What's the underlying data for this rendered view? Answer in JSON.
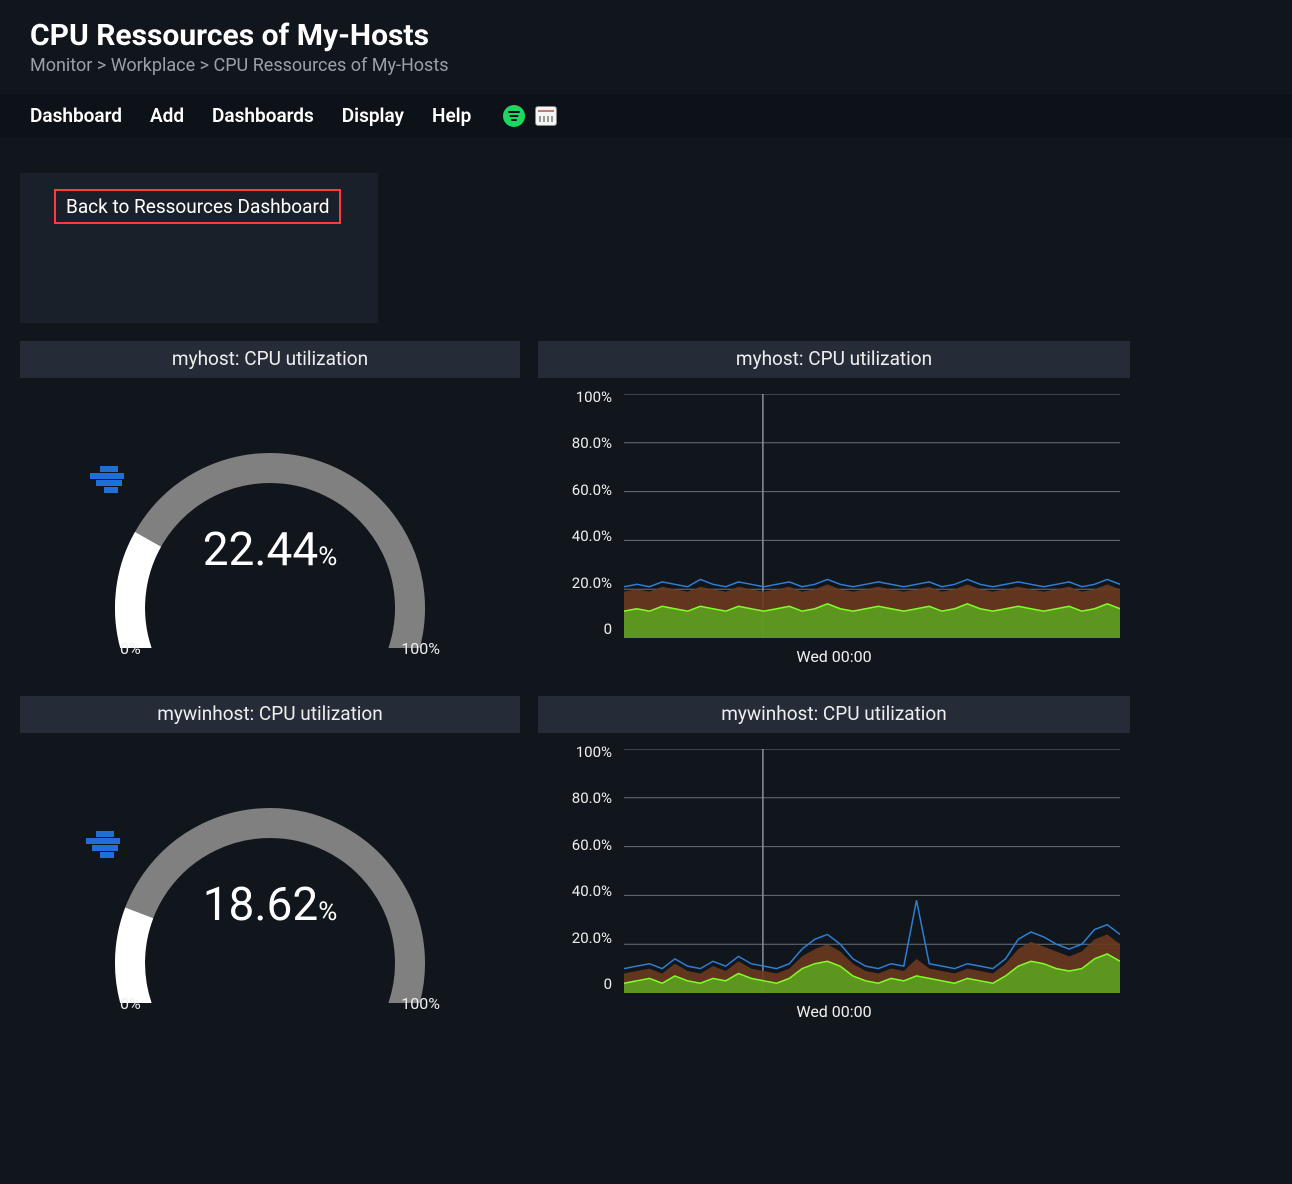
{
  "header": {
    "title": "CPU Ressources of My-Hosts",
    "breadcrumb": "Monitor > Workplace > CPU Ressources of My-Hosts"
  },
  "menu": {
    "items": [
      "Dashboard",
      "Add",
      "Dashboards",
      "Display",
      "Help"
    ]
  },
  "back_panel": {
    "label": "Back to Ressources Dashboard",
    "border_color": "#ff3b3b"
  },
  "colors": {
    "page_bg": "#11161d",
    "panel_header_bg": "#252c37",
    "gauge_track": "#808080",
    "gauge_fill": "#ffffff",
    "marker": "#1e6fd9",
    "series_blue": "#2e7fd4",
    "series_brown": "#6b3a1f",
    "series_green": "#5bbf1f",
    "grid": "#6a7078"
  },
  "gauges": [
    {
      "title": "myhost: CPU utilization",
      "value_text": "22.44",
      "percent_suffix": "%",
      "value": 22.44,
      "min_label": "0%",
      "max_label": "100%"
    },
    {
      "title": "mywinhost: CPU utilization",
      "value_text": "18.62",
      "percent_suffix": "%",
      "value": 18.62,
      "min_label": "0%",
      "max_label": "100%"
    }
  ],
  "charts": [
    {
      "title": "myhost: CPU utilization",
      "y_ticks": [
        "100%",
        "80.0%",
        "60.0%",
        "40.0%",
        "20.0%",
        "0"
      ],
      "ylim": [
        0,
        100
      ],
      "x_label": "Wed 00:00",
      "vline_x": 0.28,
      "series": {
        "blue": [
          21,
          22,
          21,
          23,
          22,
          21,
          24,
          22,
          21,
          23,
          22,
          21,
          22,
          23,
          21,
          22,
          24,
          22,
          21,
          22,
          23,
          22,
          21,
          22,
          23,
          21,
          22,
          24,
          22,
          21,
          22,
          23,
          22,
          21,
          22,
          23,
          21,
          22,
          24,
          22
        ],
        "brown": [
          19,
          20,
          19,
          21,
          20,
          19,
          21,
          20,
          19,
          21,
          20,
          19,
          20,
          21,
          19,
          20,
          22,
          20,
          19,
          20,
          21,
          20,
          19,
          20,
          21,
          19,
          20,
          22,
          20,
          19,
          20,
          21,
          20,
          19,
          20,
          21,
          19,
          20,
          22,
          20
        ],
        "green": [
          11,
          12,
          11,
          13,
          12,
          11,
          13,
          12,
          11,
          13,
          12,
          11,
          12,
          13,
          11,
          12,
          14,
          12,
          11,
          12,
          13,
          12,
          11,
          12,
          13,
          11,
          12,
          14,
          12,
          11,
          12,
          13,
          12,
          11,
          12,
          13,
          11,
          12,
          14,
          12
        ]
      }
    },
    {
      "title": "mywinhost: CPU utilization",
      "y_ticks": [
        "100%",
        "80.0%",
        "60.0%",
        "40.0%",
        "20.0%",
        "0"
      ],
      "ylim": [
        0,
        100
      ],
      "x_label": "Wed 00:00",
      "vline_x": 0.28,
      "series": {
        "blue": [
          10,
          11,
          12,
          10,
          14,
          11,
          10,
          13,
          11,
          15,
          12,
          11,
          10,
          12,
          18,
          22,
          24,
          20,
          14,
          11,
          10,
          12,
          11,
          38,
          12,
          11,
          10,
          12,
          11,
          10,
          14,
          22,
          25,
          23,
          20,
          18,
          20,
          26,
          28,
          24
        ],
        "brown": [
          8,
          9,
          10,
          8,
          12,
          9,
          8,
          11,
          9,
          13,
          10,
          9,
          8,
          10,
          15,
          18,
          20,
          17,
          12,
          9,
          8,
          10,
          9,
          14,
          10,
          9,
          8,
          10,
          9,
          8,
          12,
          18,
          21,
          19,
          17,
          15,
          17,
          22,
          24,
          20
        ],
        "green": [
          4,
          5,
          6,
          4,
          7,
          5,
          4,
          6,
          5,
          8,
          6,
          5,
          4,
          6,
          10,
          12,
          13,
          11,
          7,
          5,
          4,
          6,
          5,
          7,
          6,
          5,
          4,
          6,
          5,
          4,
          7,
          11,
          13,
          12,
          10,
          9,
          10,
          14,
          16,
          13
        ]
      }
    }
  ]
}
